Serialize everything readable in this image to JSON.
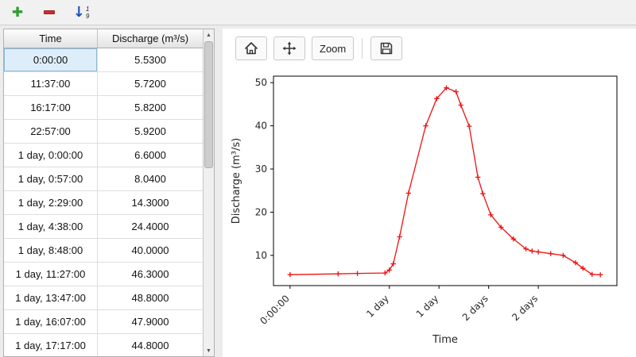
{
  "toolbar": {
    "sort_digits": [
      "1",
      "9"
    ]
  },
  "icons": {
    "add": "✚",
    "sort_arrow": "↓",
    "scroll_up": "▲",
    "scroll_down": "▼"
  },
  "table": {
    "columns": [
      "Time",
      "Discharge (m³/s)"
    ],
    "selected_row": 0,
    "rows": [
      [
        "0:00:00",
        "5.5300"
      ],
      [
        "11:37:00",
        "5.7200"
      ],
      [
        "16:17:00",
        "5.8200"
      ],
      [
        "22:57:00",
        "5.9200"
      ],
      [
        "1 day, 0:00:00",
        "6.6000"
      ],
      [
        "1 day, 0:57:00",
        "8.0400"
      ],
      [
        "1 day, 2:29:00",
        "14.3000"
      ],
      [
        "1 day, 4:38:00",
        "24.4000"
      ],
      [
        "1 day, 8:48:00",
        "40.0000"
      ],
      [
        "1 day, 11:27:00",
        "46.3000"
      ],
      [
        "1 day, 13:47:00",
        "48.8000"
      ],
      [
        "1 day, 16:07:00",
        "47.9000"
      ],
      [
        "1 day, 17:17:00",
        "44.8000"
      ]
    ]
  },
  "chart_toolbar": {
    "zoom_label": "Zoom"
  },
  "chart_data": {
    "type": "line",
    "title": "",
    "xlabel": "Time",
    "ylabel": "Discharge (m³/s)",
    "line_color": "#ee1111",
    "marker": "+",
    "grid": false,
    "xlim": [
      -4,
      79
    ],
    "ylim": [
      3,
      51.5
    ],
    "x_ticks": [
      {
        "h": 0,
        "label": "0:00:00"
      },
      {
        "h": 24,
        "label": "1 day"
      },
      {
        "h": 36,
        "label": "1 day"
      },
      {
        "h": 48,
        "label": "2 days"
      },
      {
        "h": 60,
        "label": "2 days"
      }
    ],
    "y_ticks": [
      10,
      20,
      30,
      40,
      50
    ],
    "x_hours": [
      0,
      11.62,
      16.28,
      22.95,
      24.0,
      24.95,
      26.48,
      28.63,
      32.8,
      35.45,
      37.78,
      40.12,
      41.28,
      43.3,
      45.4,
      46.6,
      48.5,
      51.0,
      54.0,
      57.0,
      58.5,
      60.0,
      63.0,
      66.0,
      69.0,
      70.8,
      73.0,
      75.0
    ],
    "y": [
      5.53,
      5.72,
      5.82,
      5.92,
      6.6,
      8.04,
      14.3,
      24.4,
      40.0,
      46.3,
      48.8,
      47.9,
      44.8,
      39.9,
      28.1,
      24.3,
      19.4,
      16.5,
      13.8,
      11.5,
      11.0,
      10.8,
      10.4,
      10.0,
      8.3,
      7.0,
      5.6,
      5.5
    ]
  }
}
